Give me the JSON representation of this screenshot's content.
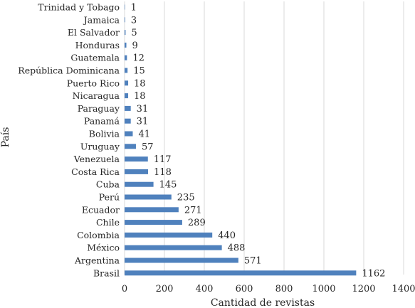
{
  "chart_data": {
    "type": "bar",
    "orientation": "horizontal",
    "title": "",
    "xlabel": "Cantidad de revistas",
    "ylabel": "País",
    "xlim": [
      0,
      1400
    ],
    "xticks": [
      0,
      200,
      400,
      600,
      800,
      1000,
      1200,
      1400
    ],
    "grid": true,
    "bar_color": "#4f81bd",
    "categories": [
      "Trinidad y Tobago",
      "Jamaica",
      "El Salvador",
      "Honduras",
      "Guatemala",
      "República Dominicana",
      "Puerto Rico",
      "Nicaragua",
      "Paraguay",
      "Panamá",
      "Bolivia",
      "Uruguay",
      "Venezuela",
      "Costa Rica",
      "Cuba",
      "Perú",
      "Ecuador",
      "Chile",
      "Colombia",
      "México",
      "Argentina",
      "Brasil"
    ],
    "values": [
      1,
      3,
      5,
      9,
      12,
      15,
      18,
      18,
      31,
      31,
      41,
      57,
      117,
      118,
      145,
      235,
      271,
      289,
      440,
      488,
      571,
      1162
    ]
  }
}
